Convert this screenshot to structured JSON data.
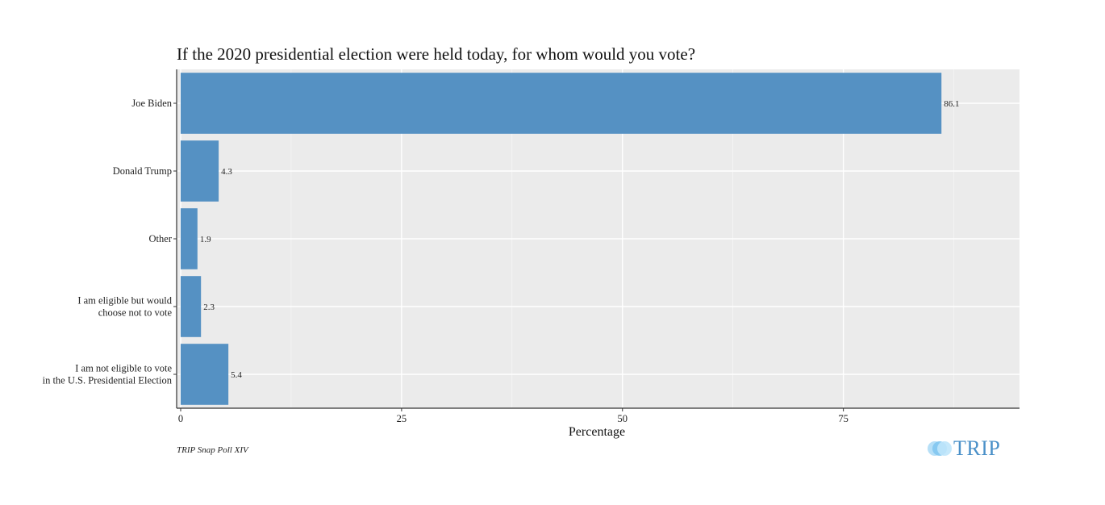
{
  "chart_data": {
    "type": "bar",
    "orientation": "horizontal",
    "title": "If the 2020 presidential election were held today, for whom would you vote?",
    "xlabel": "Percentage",
    "ylabel": "",
    "categories": [
      [
        "Joe Biden"
      ],
      [
        "Donald Trump"
      ],
      [
        "Other"
      ],
      [
        "I am eligible but would",
        "choose not to vote"
      ],
      [
        "I am not eligible to vote",
        "in the U.S. Presidential Election"
      ]
    ],
    "values": [
      86.1,
      4.3,
      1.9,
      2.3,
      5.4
    ],
    "data_labels": [
      "86.1",
      "4.3",
      "1.9",
      "2.3",
      "5.4"
    ],
    "xticks": [
      0,
      25,
      50,
      75
    ],
    "xlim": [
      0,
      95.2
    ],
    "grid": true,
    "colors": {
      "bar": "#5591c3",
      "panel": "#ebebeb",
      "grid": "#ffffff",
      "axis": "#333333"
    }
  },
  "footer": {
    "source": "TRIP Snap Poll XIV",
    "logo_text": "TRIP"
  }
}
